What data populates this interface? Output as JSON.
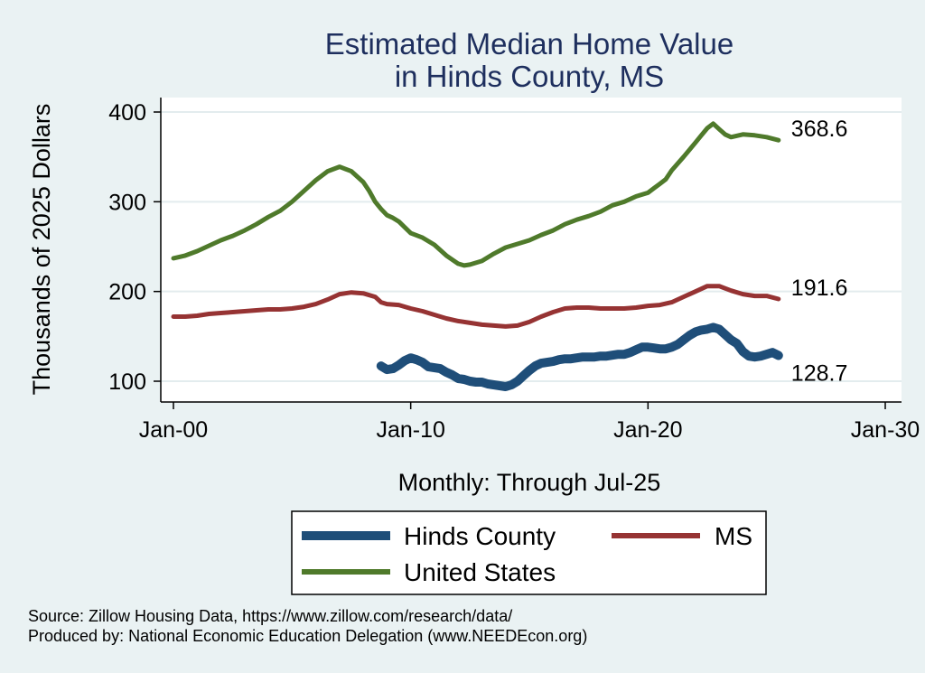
{
  "chart_data": {
    "type": "line",
    "title": [
      "Estimated Median Home Value",
      "in Hinds County, MS"
    ],
    "xlabel": "Monthly: Through Jul-25",
    "ylabel": "Thousands of 2025 Dollars",
    "xlim": [
      2000,
      2030
    ],
    "ylim": [
      80,
      410
    ],
    "x_ticks": [
      {
        "value": 2000,
        "label": "Jan-00"
      },
      {
        "value": 2010,
        "label": "Jan-10"
      },
      {
        "value": 2020,
        "label": "Jan-20"
      },
      {
        "value": 2030,
        "label": "Jan-30"
      }
    ],
    "y_ticks": [
      100,
      200,
      300,
      400
    ],
    "grid": true,
    "series": [
      {
        "name": "Hinds County",
        "color": "#1f4e79",
        "end_label": "128.7",
        "points": [
          [
            2008.75,
            117
          ],
          [
            2009.0,
            113
          ],
          [
            2009.25,
            114
          ],
          [
            2009.5,
            118
          ],
          [
            2009.75,
            123
          ],
          [
            2010.0,
            126
          ],
          [
            2010.25,
            124
          ],
          [
            2010.5,
            121
          ],
          [
            2010.75,
            116
          ],
          [
            2011.0,
            115
          ],
          [
            2011.25,
            114
          ],
          [
            2011.5,
            110
          ],
          [
            2011.75,
            107
          ],
          [
            2012.0,
            103
          ],
          [
            2012.25,
            102
          ],
          [
            2012.5,
            100
          ],
          [
            2012.75,
            99
          ],
          [
            2013.0,
            99
          ],
          [
            2013.25,
            97
          ],
          [
            2013.5,
            96
          ],
          [
            2013.75,
            95
          ],
          [
            2014.0,
            94
          ],
          [
            2014.25,
            96
          ],
          [
            2014.5,
            100
          ],
          [
            2014.75,
            106
          ],
          [
            2015.0,
            112
          ],
          [
            2015.25,
            117
          ],
          [
            2015.5,
            120
          ],
          [
            2015.75,
            121
          ],
          [
            2016.0,
            122
          ],
          [
            2016.25,
            124
          ],
          [
            2016.5,
            125
          ],
          [
            2016.75,
            125
          ],
          [
            2017.0,
            126
          ],
          [
            2017.25,
            127
          ],
          [
            2017.5,
            127
          ],
          [
            2017.75,
            127
          ],
          [
            2018.0,
            128
          ],
          [
            2018.25,
            128
          ],
          [
            2018.5,
            129
          ],
          [
            2018.75,
            130
          ],
          [
            2019.0,
            130
          ],
          [
            2019.25,
            132
          ],
          [
            2019.5,
            135
          ],
          [
            2019.75,
            138
          ],
          [
            2020.0,
            138
          ],
          [
            2020.25,
            137
          ],
          [
            2020.5,
            136
          ],
          [
            2020.75,
            136
          ],
          [
            2021.0,
            138
          ],
          [
            2021.25,
            141
          ],
          [
            2021.5,
            146
          ],
          [
            2021.75,
            151
          ],
          [
            2022.0,
            155
          ],
          [
            2022.25,
            157
          ],
          [
            2022.5,
            158
          ],
          [
            2022.75,
            160
          ],
          [
            2023.0,
            158
          ],
          [
            2023.25,
            152
          ],
          [
            2023.5,
            146
          ],
          [
            2023.75,
            142
          ],
          [
            2024.0,
            133
          ],
          [
            2024.25,
            128
          ],
          [
            2024.5,
            127
          ],
          [
            2024.75,
            128
          ],
          [
            2025.0,
            130
          ],
          [
            2025.25,
            132
          ],
          [
            2025.5,
            128.7
          ]
        ]
      },
      {
        "name": "MS",
        "color": "#963333",
        "end_label": "191.6",
        "points": [
          [
            2000.0,
            172
          ],
          [
            2000.5,
            172
          ],
          [
            2001.0,
            173
          ],
          [
            2001.5,
            175
          ],
          [
            2002.0,
            176
          ],
          [
            2002.5,
            177
          ],
          [
            2003.0,
            178
          ],
          [
            2003.5,
            179
          ],
          [
            2004.0,
            180
          ],
          [
            2004.5,
            180
          ],
          [
            2005.0,
            181
          ],
          [
            2005.5,
            183
          ],
          [
            2006.0,
            186
          ],
          [
            2006.5,
            191
          ],
          [
            2007.0,
            197
          ],
          [
            2007.5,
            199
          ],
          [
            2008.0,
            198
          ],
          [
            2008.5,
            194
          ],
          [
            2008.75,
            188
          ],
          [
            2009.0,
            186
          ],
          [
            2009.5,
            185
          ],
          [
            2010.0,
            181
          ],
          [
            2010.5,
            178
          ],
          [
            2011.0,
            174
          ],
          [
            2011.5,
            170
          ],
          [
            2012.0,
            167
          ],
          [
            2012.5,
            165
          ],
          [
            2013.0,
            163
          ],
          [
            2013.5,
            162
          ],
          [
            2014.0,
            161
          ],
          [
            2014.5,
            162
          ],
          [
            2015.0,
            166
          ],
          [
            2015.5,
            172
          ],
          [
            2016.0,
            177
          ],
          [
            2016.5,
            181
          ],
          [
            2017.0,
            182
          ],
          [
            2017.5,
            182
          ],
          [
            2018.0,
            181
          ],
          [
            2018.5,
            181
          ],
          [
            2019.0,
            181
          ],
          [
            2019.5,
            182
          ],
          [
            2020.0,
            184
          ],
          [
            2020.5,
            185
          ],
          [
            2021.0,
            188
          ],
          [
            2021.5,
            194
          ],
          [
            2022.0,
            200
          ],
          [
            2022.5,
            206
          ],
          [
            2023.0,
            206
          ],
          [
            2023.5,
            201
          ],
          [
            2024.0,
            197
          ],
          [
            2024.5,
            195
          ],
          [
            2025.0,
            195
          ],
          [
            2025.5,
            191.6
          ]
        ]
      },
      {
        "name": "United States",
        "color": "#4f7a2b",
        "end_label": "368.6",
        "points": [
          [
            2000.0,
            237
          ],
          [
            2000.5,
            240
          ],
          [
            2001.0,
            245
          ],
          [
            2001.5,
            251
          ],
          [
            2002.0,
            257
          ],
          [
            2002.5,
            262
          ],
          [
            2003.0,
            268
          ],
          [
            2003.5,
            275
          ],
          [
            2004.0,
            283
          ],
          [
            2004.5,
            290
          ],
          [
            2005.0,
            300
          ],
          [
            2005.5,
            312
          ],
          [
            2006.0,
            324
          ],
          [
            2006.5,
            334
          ],
          [
            2007.0,
            339
          ],
          [
            2007.5,
            334
          ],
          [
            2008.0,
            322
          ],
          [
            2008.25,
            312
          ],
          [
            2008.5,
            300
          ],
          [
            2008.75,
            292
          ],
          [
            2009.0,
            285
          ],
          [
            2009.25,
            282
          ],
          [
            2009.5,
            278
          ],
          [
            2010.0,
            265
          ],
          [
            2010.5,
            260
          ],
          [
            2011.0,
            252
          ],
          [
            2011.5,
            240
          ],
          [
            2012.0,
            231
          ],
          [
            2012.25,
            229
          ],
          [
            2012.5,
            230
          ],
          [
            2013.0,
            234
          ],
          [
            2013.5,
            242
          ],
          [
            2014.0,
            249
          ],
          [
            2014.5,
            253
          ],
          [
            2015.0,
            257
          ],
          [
            2015.5,
            263
          ],
          [
            2016.0,
            268
          ],
          [
            2016.5,
            275
          ],
          [
            2017.0,
            280
          ],
          [
            2017.5,
            284
          ],
          [
            2018.0,
            289
          ],
          [
            2018.5,
            296
          ],
          [
            2019.0,
            300
          ],
          [
            2019.5,
            306
          ],
          [
            2020.0,
            310
          ],
          [
            2020.25,
            315
          ],
          [
            2020.5,
            320
          ],
          [
            2020.75,
            325
          ],
          [
            2021.0,
            335
          ],
          [
            2021.5,
            350
          ],
          [
            2022.0,
            366
          ],
          [
            2022.25,
            374
          ],
          [
            2022.5,
            382
          ],
          [
            2022.75,
            387
          ],
          [
            2023.0,
            381
          ],
          [
            2023.25,
            375
          ],
          [
            2023.5,
            372
          ],
          [
            2024.0,
            375
          ],
          [
            2024.5,
            374
          ],
          [
            2025.0,
            372
          ],
          [
            2025.5,
            368.6
          ]
        ]
      }
    ],
    "legend": {
      "items": [
        {
          "label": "Hinds County",
          "color": "#1f4e79"
        },
        {
          "label": "MS",
          "color": "#963333"
        },
        {
          "label": "United States",
          "color": "#4f7a2b"
        }
      ]
    }
  },
  "footer": {
    "source": "Source: Zillow Housing Data, https://www.zillow.com/research/data/",
    "produced_by": "Produced by: National Economic Education Delegation (www.NEEDEcon.org)"
  }
}
